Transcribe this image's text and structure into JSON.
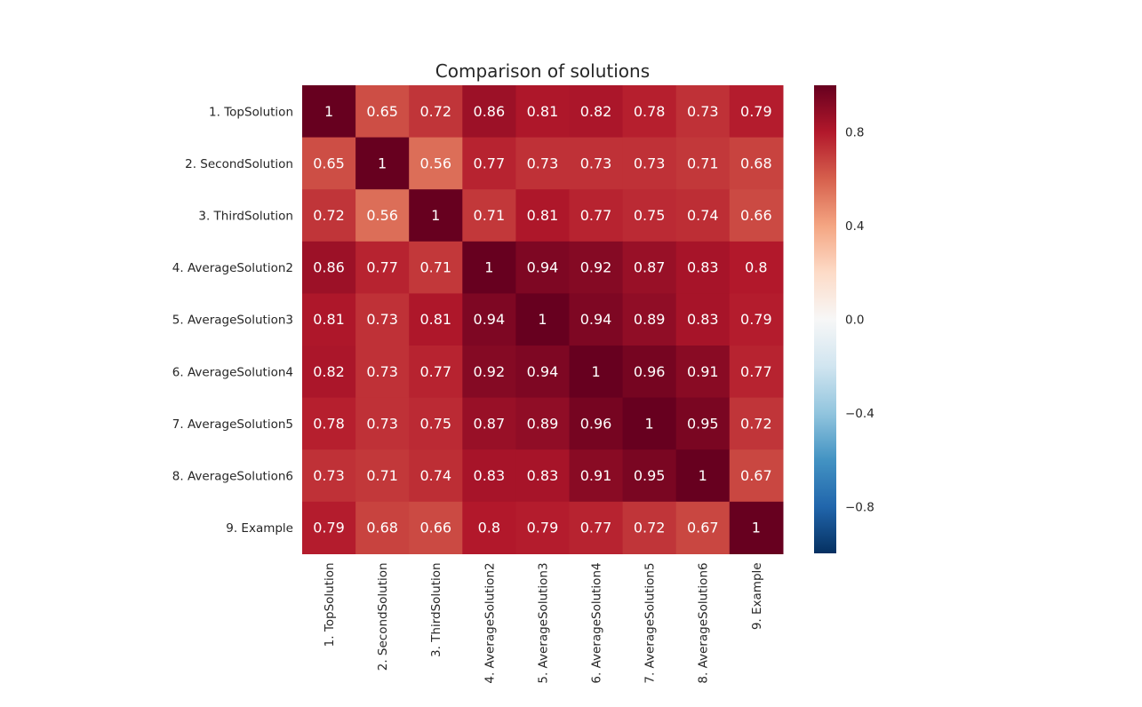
{
  "chart_data": {
    "type": "heatmap",
    "title": "Comparison of solutions",
    "row_labels": [
      "1. TopSolution",
      "2. SecondSolution",
      "3. ThirdSolution",
      "4. AverageSolution2",
      "5. AverageSolution3",
      "6. AverageSolution4",
      "7. AverageSolution5",
      "8. AverageSolution6",
      "9. Example"
    ],
    "column_labels": [
      "1. TopSolution",
      "2. SecondSolution",
      "3. ThirdSolution",
      "4. AverageSolution2",
      "5. AverageSolution3",
      "6. AverageSolution4",
      "7. AverageSolution5",
      "8. AverageSolution6",
      "9. Example"
    ],
    "values": [
      [
        1,
        0.65,
        0.72,
        0.86,
        0.81,
        0.82,
        0.78,
        0.73,
        0.79
      ],
      [
        0.65,
        1,
        0.56,
        0.77,
        0.73,
        0.73,
        0.73,
        0.71,
        0.68
      ],
      [
        0.72,
        0.56,
        1,
        0.71,
        0.81,
        0.77,
        0.75,
        0.74,
        0.66
      ],
      [
        0.86,
        0.77,
        0.71,
        1,
        0.94,
        0.92,
        0.87,
        0.83,
        0.8
      ],
      [
        0.81,
        0.73,
        0.81,
        0.94,
        1,
        0.94,
        0.89,
        0.83,
        0.79
      ],
      [
        0.82,
        0.73,
        0.77,
        0.92,
        0.94,
        1,
        0.96,
        0.91,
        0.77
      ],
      [
        0.78,
        0.73,
        0.75,
        0.87,
        0.89,
        0.96,
        1,
        0.95,
        0.72
      ],
      [
        0.73,
        0.71,
        0.74,
        0.83,
        0.83,
        0.91,
        0.95,
        1,
        0.67
      ],
      [
        0.79,
        0.68,
        0.66,
        0.8,
        0.79,
        0.77,
        0.72,
        0.67,
        1
      ]
    ],
    "annotations": [
      [
        "1",
        "0.65",
        "0.72",
        "0.86",
        "0.81",
        "0.82",
        "0.78",
        "0.73",
        "0.79"
      ],
      [
        "0.65",
        "1",
        "0.56",
        "0.77",
        "0.73",
        "0.73",
        "0.73",
        "0.71",
        "0.68"
      ],
      [
        "0.72",
        "0.56",
        "1",
        "0.71",
        "0.81",
        "0.77",
        "0.75",
        "0.74",
        "0.66"
      ],
      [
        "0.86",
        "0.77",
        "0.71",
        "1",
        "0.94",
        "0.92",
        "0.87",
        "0.83",
        "0.8"
      ],
      [
        "0.81",
        "0.73",
        "0.81",
        "0.94",
        "1",
        "0.94",
        "0.89",
        "0.83",
        "0.79"
      ],
      [
        "0.82",
        "0.73",
        "0.77",
        "0.92",
        "0.94",
        "1",
        "0.96",
        "0.91",
        "0.77"
      ],
      [
        "0.78",
        "0.73",
        "0.75",
        "0.87",
        "0.89",
        "0.96",
        "1",
        "0.95",
        "0.72"
      ],
      [
        "0.73",
        "0.71",
        "0.74",
        "0.83",
        "0.83",
        "0.91",
        "0.95",
        "1",
        "0.67"
      ],
      [
        "0.79",
        "0.68",
        "0.66",
        "0.8",
        "0.79",
        "0.77",
        "0.72",
        "0.67",
        "1"
      ]
    ],
    "colormap": "RdBu_r",
    "colormap_stops": [
      "#053061",
      "#2166ac",
      "#4393c3",
      "#92c5de",
      "#d1e5f0",
      "#f7f7f7",
      "#fddbc7",
      "#f4a582",
      "#d6604d",
      "#b2182b",
      "#67001f"
    ],
    "vmin": -1,
    "vmax": 1,
    "colorbar": {
      "ticks": [
        0.8,
        0.4,
        0.0,
        -0.4,
        -0.8
      ],
      "tick_labels": [
        "0.8",
        "0.4",
        "0.0",
        "−0.4",
        "−0.8"
      ],
      "placement": "right"
    },
    "annotation_color": "#ffffff",
    "text_color": "#262626",
    "xlabel": "",
    "ylabel": "",
    "grid": false
  }
}
